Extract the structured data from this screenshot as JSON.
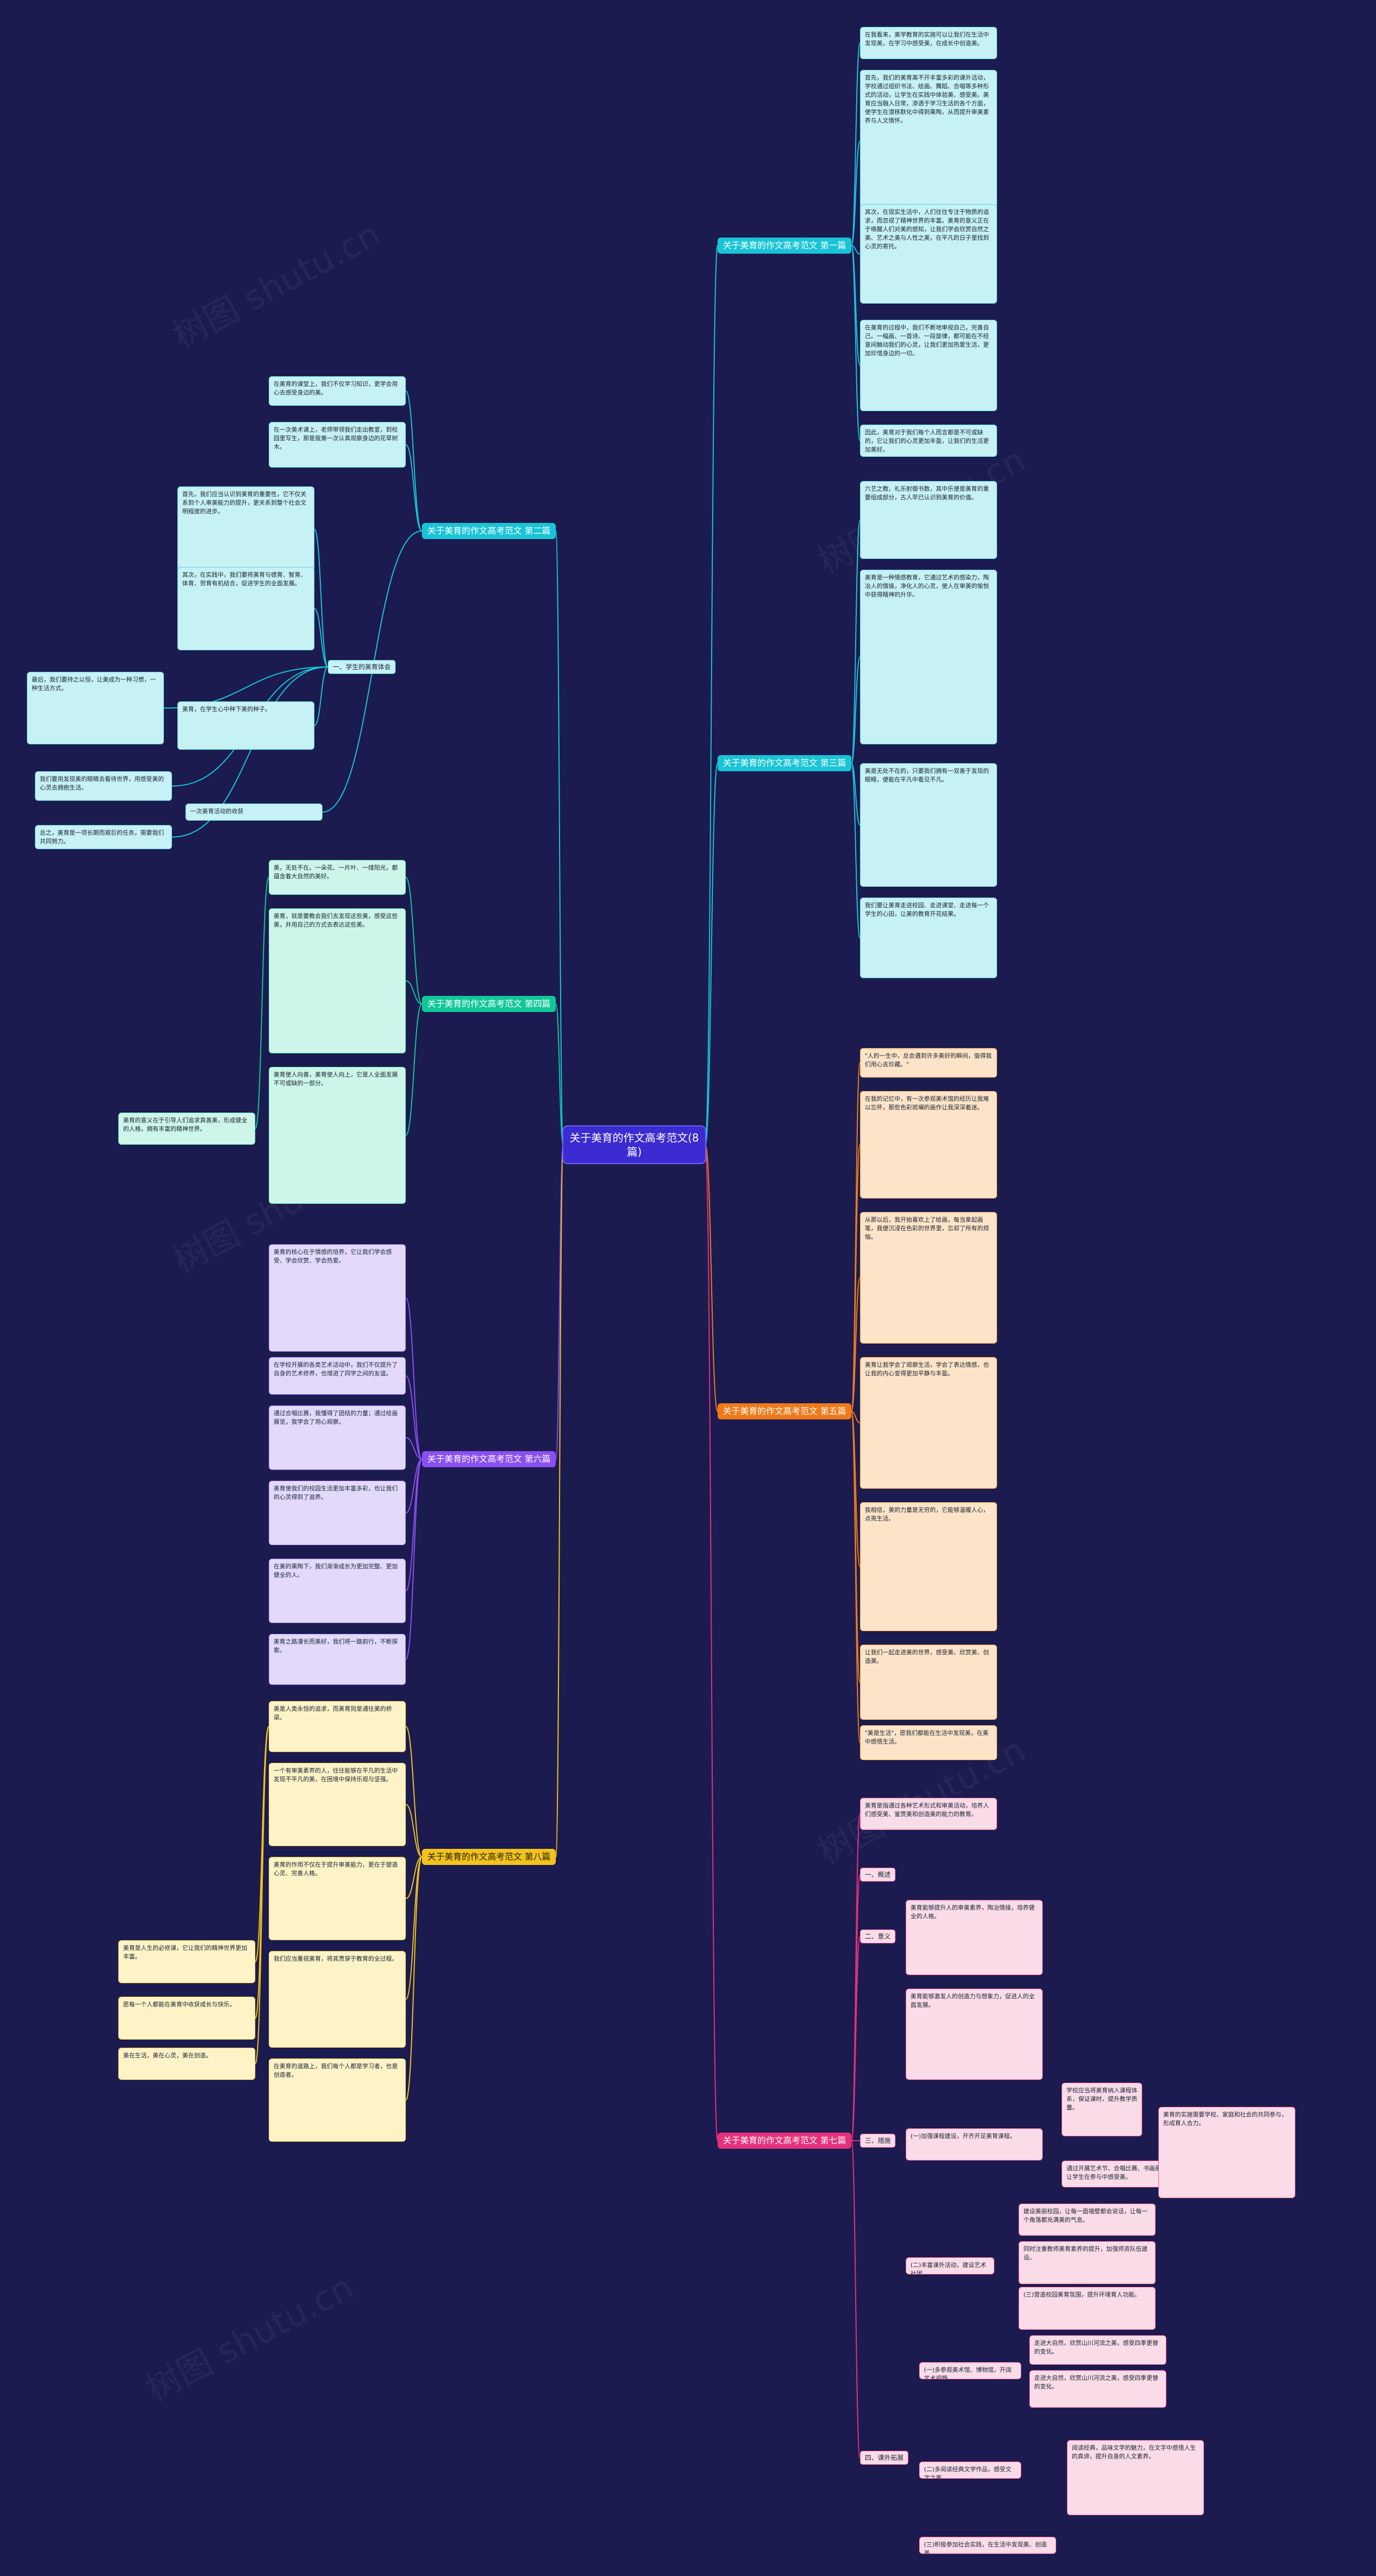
{
  "root": "关于美育的作文高考范文(8篇)",
  "watermark": "树图 shutu.cn",
  "colors": {
    "background": "#1b1b4f",
    "root": "#3b2bd0",
    "cyan": "#19c4d6",
    "teal": "#11c79a",
    "orange": "#f07a1a",
    "purple": "#8a4ff0",
    "yellow": "#f2c21d",
    "pink": "#e6307a"
  },
  "branches": {
    "b1": "关于美育的作文高考范文 第一篇",
    "b2": "关于美育的作文高考范文 第二篇",
    "b3": "关于美育的作文高考范文 第三篇",
    "b4": "关于美育的作文高考范文 第四篇",
    "b5": "关于美育的作文高考范文 第五篇",
    "b6": "关于美育的作文高考范文 第六篇",
    "b7": "关于美育的作文高考范文 第七篇",
    "b8": "关于美育的作文高考范文 第八篇"
  },
  "b1_leaves": [
    "在我看来，美学教育的实施可以让我们在生活中发现美，在学习中感受美，在成长中创造美。",
    "首先，我们的美育离不开丰富多彩的课外活动，学校通过组织书法、绘画、舞蹈、合唱等多种形式的活动，让学生在实践中体验美、感受美。美育应当融入日常，渗透于学习生活的各个方面，使学生在潜移默化中得到熏陶，从而提升审美素养与人文情怀。",
    "其次，在现实生活中，人们往往专注于物质的追求，而忽视了精神世界的丰富。美育的意义正在于唤醒人们对美的感知，让我们学会欣赏自然之美、艺术之美与人性之美，在平凡的日子里找到心灵的寄托。",
    "在美育的过程中，我们不断地审视自己，完善自己。一幅画、一首诗、一段旋律，都可能在不经意间触动我们的心灵，让我们更加热爱生活，更加珍惜身边的一切。",
    "因此，美育对于我们每个人而言都是不可或缺的，它让我们的心灵更加丰盈，让我们的生活更加美好。"
  ],
  "b2_main": [
    "在美育的课堂上，我们不仅学习知识，更学会用心去感受身边的美。",
    "在一次美术课上，老师带领我们走出教室，到校园里写生，那是我第一次认真观察身边的花草树木。",
    "那天，阳光正好，微风不燥，我坐在树下，看着叶子在光影中摇曳，心中涌起一种说不出的感动。",
    "一次美育活动的收获"
  ],
  "b2_sub": [
    "首先，我们应当认识到美育的重要性，它不仅关系到个人审美能力的提升，更关系到整个社会文明程度的进步。",
    "其次，在实践中，我们要将美育与德育、智育、体育、劳育有机结合，促进学生的全面发展。",
    "最后，我们要持之以恒，让美成为一种习惯，一种生活方式。",
    "美育，在学生心中种下美的种子。",
    "我们要用发现美的眼睛去看待世界，用感受美的心灵去拥抱生活。",
    "总之，美育是一项长期而艰巨的任务，需要我们共同努力。"
  ],
  "b2_label": "一、学生的美育体会",
  "b3_leaves": [
    "六艺之教，礼乐射御书数，其中乐便是美育的重要组成部分，古人早已认识到美育的价值。",
    "美育是一种情感教育，它通过艺术的感染力，陶冶人的情操，净化人的心灵，使人在审美的愉悦中获得精神的升华。",
    "美是无处不在的，只要我们拥有一双善于发现的眼睛，便能在平凡中看见不凡。",
    "我们要让美育走进校园、走进课堂、走进每一个学生的心田，让美的教育开花结果。"
  ],
  "b4_leaves": [
    "美，无处不在。一朵花、一片叶、一缕阳光，都蕴含着大自然的美好。",
    "美育，就是要教会我们去发现这些美，感受这些美，并用自己的方式去表达这些美。",
    "美育使人向善，美育使人向上，它是人全面发展不可或缺的一部分。"
  ],
  "b4_side": "美育的意义在于引导人们追求真善美，形成健全的人格，拥有丰富的精神世界。",
  "b5_leaves": [
    "\"人的一生中，总会遇到许多美好的瞬间，值得我们用心去珍藏。\"",
    "在我的记忆中，有一次参观美术馆的经历让我难以忘怀，那些色彩斑斓的画作让我深深着迷。",
    "从那以后，我开始喜欢上了绘画，每当拿起画笔，我便沉浸在色彩的世界里，忘却了所有的烦恼。",
    "美育让我学会了观察生活，学会了表达情感，也让我的内心变得更加平静与丰盈。",
    "我相信，美的力量是无穷的，它能够温暖人心，点亮生活。",
    "让我们一起走进美的世界，感受美、欣赏美、创造美。",
    "\"美是生活\"，愿我们都能在生活中发现美，在美中感悟生活。"
  ],
  "b6_leaves": [
    "美育的核心在于情感的培养，它让我们学会感受、学会欣赏、学会热爱。",
    "在学校开展的各类艺术活动中，我们不仅提升了自身的艺术修养，也增进了同学之间的友谊。",
    "通过合唱比赛，我懂得了团结的力量；通过绘画展览，我学会了用心观察。",
    "美育使我们的校园生活更加丰富多彩，也让我们的心灵得到了滋养。",
    "在美的熏陶下，我们渐渐成长为更加完整、更加健全的人。",
    "美育之路漫长而美好，我们将一路前行，不断探索。"
  ],
  "b8_main": [
    "美是人类永恒的追求，而美育则是通往美的桥梁。",
    "一个有审美素养的人，往往能够在平凡的生活中发现不平凡的美，在困境中保持乐观与坚强。",
    "美育的作用不仅在于提升审美能力，更在于塑造心灵、完善人格。",
    "我们应当重视美育，将其贯穿于教育的全过程。",
    "在美育的道路上，我们每个人都是学习者，也是创造者。"
  ],
  "b8_side": [
    "美育是人生的必修课，它让我们的精神世界更加丰富。",
    "愿每一个人都能在美育中收获成长与快乐。",
    "美在生活，美在心灵，美在创造。"
  ],
  "b7_intro": "美育是指通过各种艺术形式和审美活动，培养人们感受美、鉴赏美和创造美的能力的教育。",
  "b7_sections": {
    "s1": "一、概述",
    "s2": "二、意义",
    "s3": "三、措施",
    "s4": "四、课外拓展"
  },
  "b7_s2": [
    "美育能够提升人的审美素养，陶冶情操，培养健全的人格。",
    "美育能够激发人的创造力与想象力，促进人的全面发展。"
  ],
  "b7_s3_items": [
    "(一)加强课程建设，开齐开足美育课程。",
    "(二)丰富课外活动，建设艺术社团。",
    "(三)营造校园美育氛围，提升环境育人功能。"
  ],
  "b7_s3_detail": [
    "学校应当将美育纳入课程体系，保证课时，提升教学质量。",
    "通过开展艺术节、合唱比赛、书画展览等活动，让学生在参与中感受美。",
    "建设美丽校园，让每一面墙壁都会说话，让每一个角落都充满美的气息。",
    "同时注重教师美育素养的提升，加强师资队伍建设。"
  ],
  "b7_s3_side": "美育的实施需要学校、家庭和社会的共同参与，形成育人合力。",
  "b7_s4": [
    "(一)多参观美术馆、博物馆，开阔艺术视野。",
    "(二)多阅读经典文学作品，感受文字之美。",
    "(三)积极参加社会实践，在生活中发现美、创造美。"
  ],
  "b7_s4_detail": [
    "走进大自然，欣赏山川河流之美，感受四季更替的变化。",
    "阅读经典，品味文学的魅力，在文字中感悟人生的真谛，提升自身的人文素养。"
  ]
}
